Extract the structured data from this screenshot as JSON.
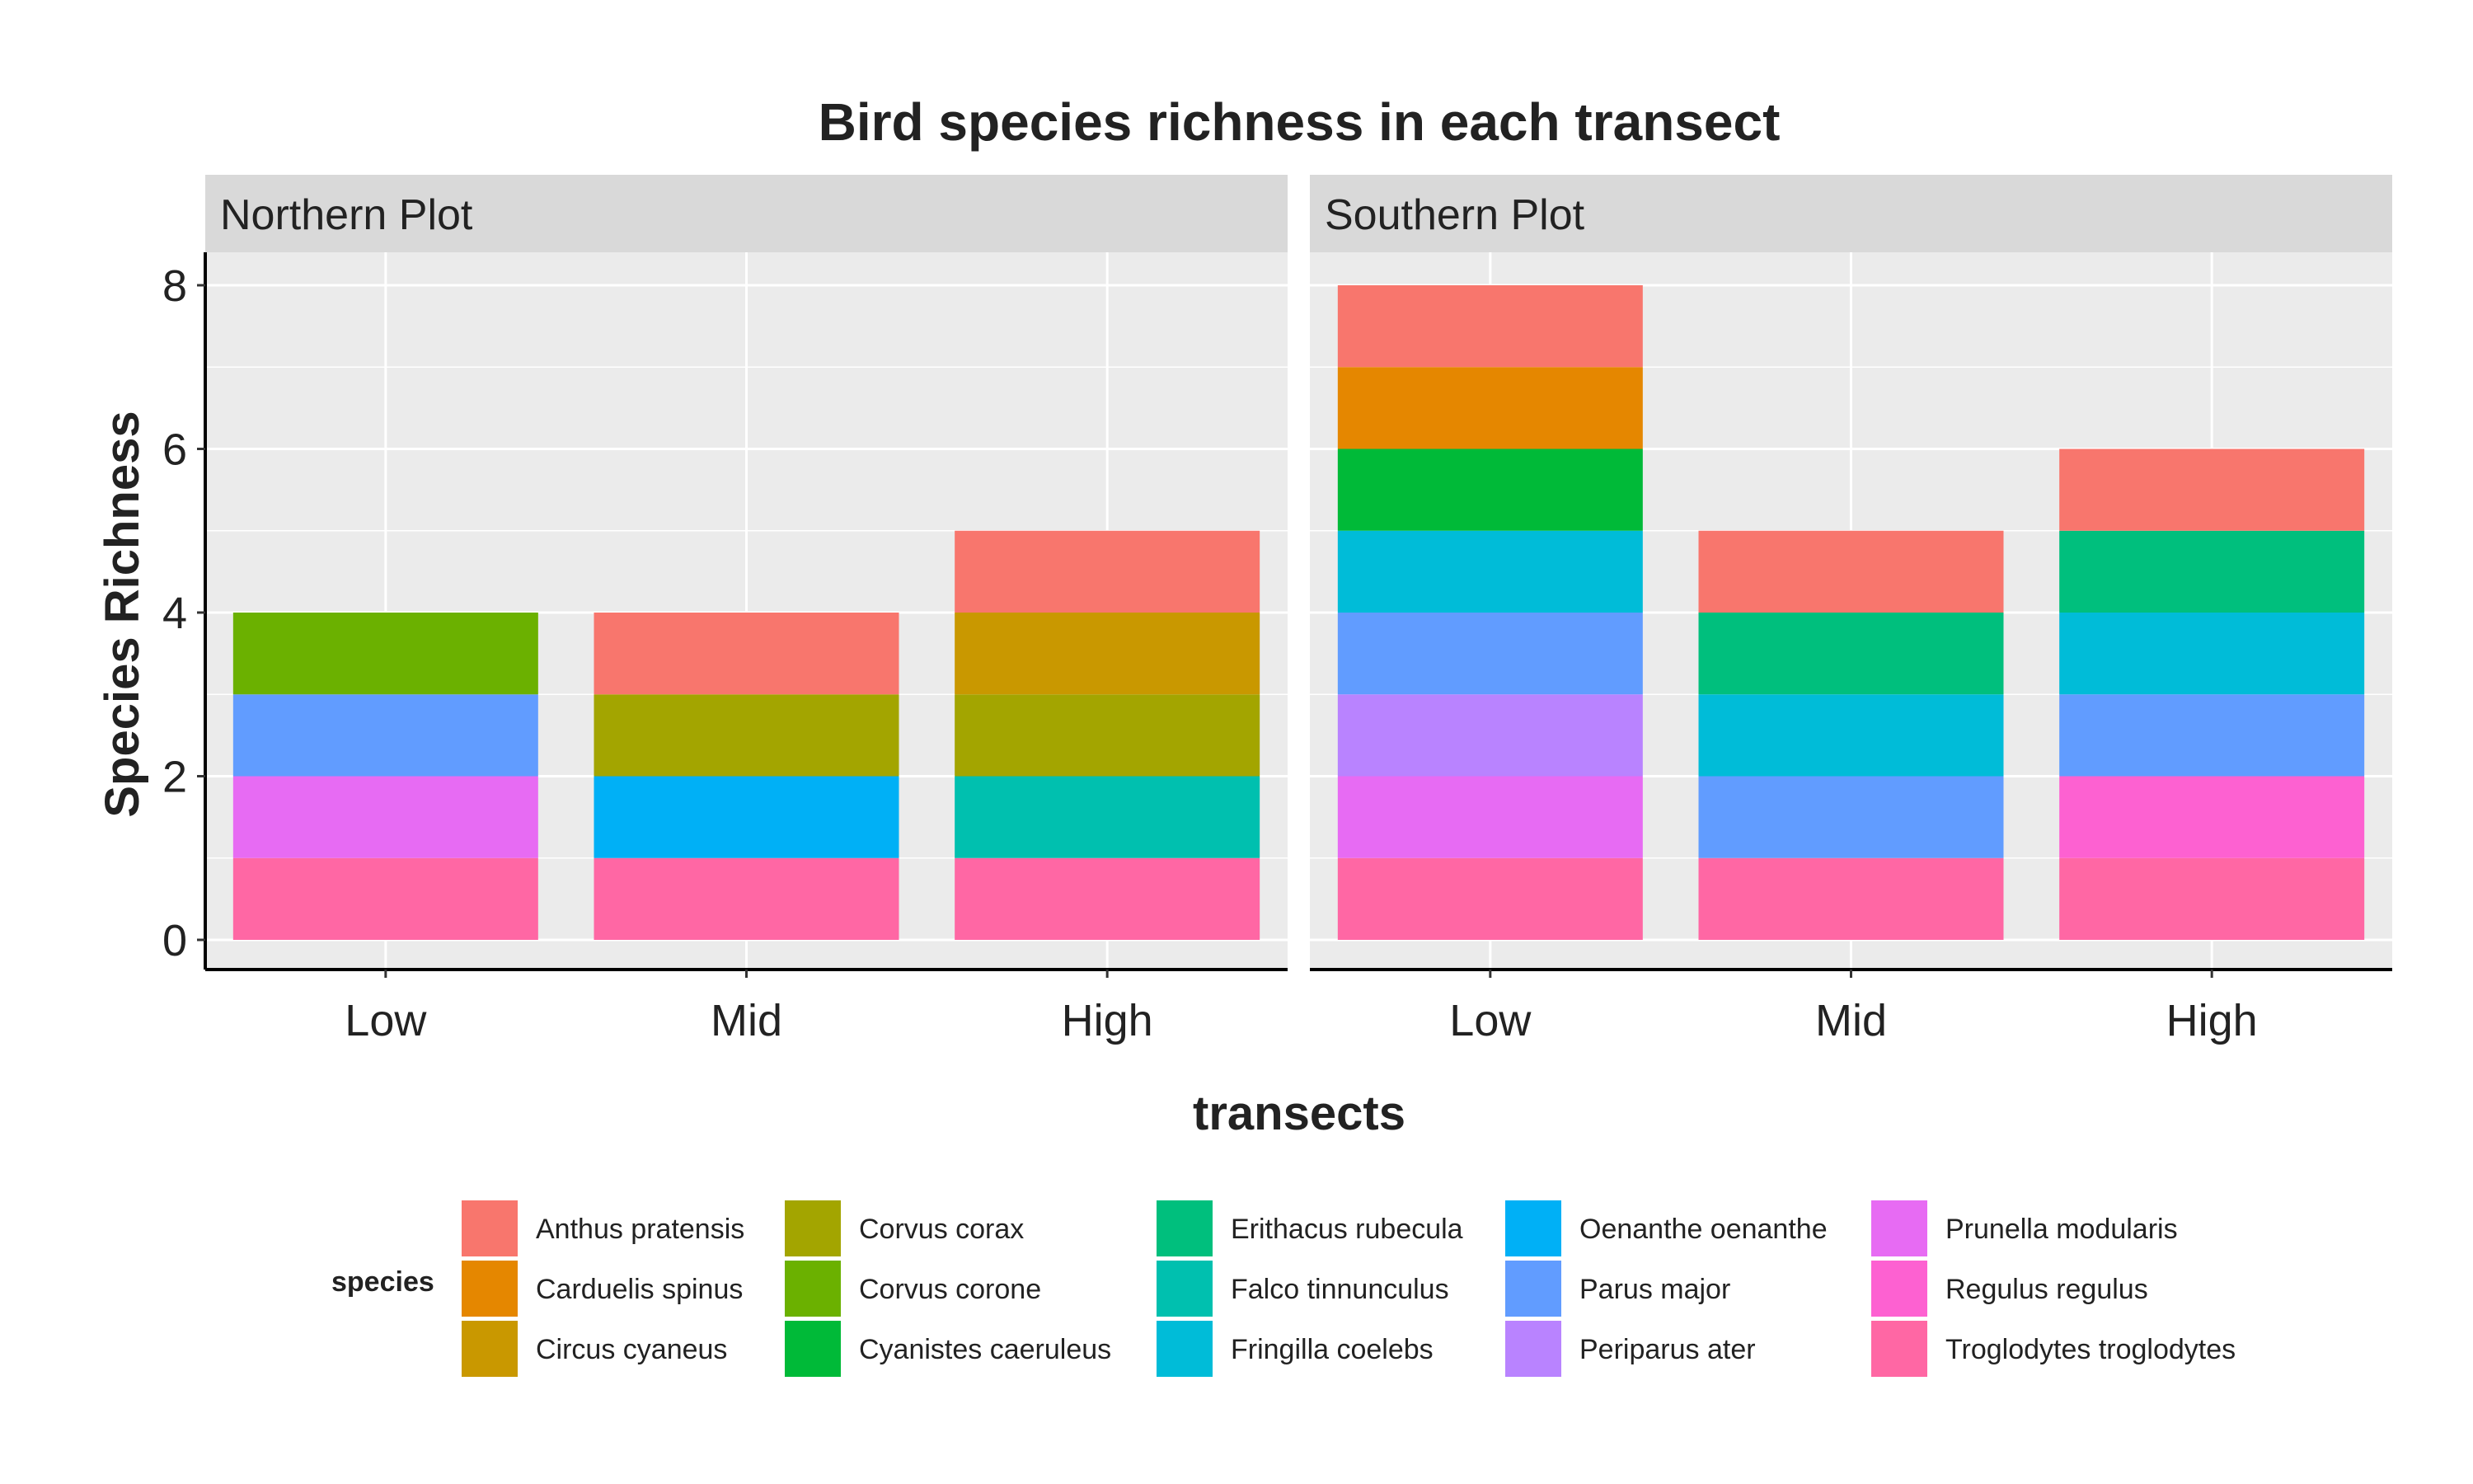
{
  "chart_data": {
    "type": "bar",
    "stacked": true,
    "title": "Bird species richness in each transect",
    "xlabel": "transects",
    "ylabel": "Species Richness",
    "ylim": [
      0,
      8
    ],
    "yticks": [
      0,
      2,
      4,
      6,
      8
    ],
    "categories": [
      "Low",
      "Mid",
      "High"
    ],
    "grid": true,
    "legend": {
      "title": "species",
      "position": "bottom",
      "entries": [
        {
          "name": "Anthus pratensis",
          "color": "#F8766D"
        },
        {
          "name": "Carduelis spinus",
          "color": "#E58700"
        },
        {
          "name": "Circus cyaneus",
          "color": "#C99800"
        },
        {
          "name": "Corvus corax",
          "color": "#A3A500"
        },
        {
          "name": "Corvus corone",
          "color": "#6BB100"
        },
        {
          "name": "Cyanistes caeruleus",
          "color": "#00BA38"
        },
        {
          "name": "Erithacus rubecula",
          "color": "#00BF7D"
        },
        {
          "name": "Falco tinnunculus",
          "color": "#00C0AF"
        },
        {
          "name": "Fringilla coelebs",
          "color": "#00BCD8"
        },
        {
          "name": "Oenanthe oenanthe",
          "color": "#00B0F6"
        },
        {
          "name": "Parus major",
          "color": "#619CFF"
        },
        {
          "name": "Periparus ater",
          "color": "#B983FF"
        },
        {
          "name": "Prunella modularis",
          "color": "#E76BF3"
        },
        {
          "name": "Regulus regulus",
          "color": "#FD61D1"
        },
        {
          "name": "Troglodytes troglodytes",
          "color": "#FF67A4"
        }
      ]
    },
    "panels": [
      {
        "label": "Northern Plot",
        "stacks": [
          {
            "category": "Low",
            "species": [
              "Troglodytes troglodytes",
              "Prunella modularis",
              "Parus major",
              "Corvus corone"
            ]
          },
          {
            "category": "Mid",
            "species": [
              "Troglodytes troglodytes",
              "Oenanthe oenanthe",
              "Corvus corax",
              "Anthus pratensis"
            ]
          },
          {
            "category": "High",
            "species": [
              "Troglodytes troglodytes",
              "Falco tinnunculus",
              "Corvus corax",
              "Circus cyaneus",
              "Anthus pratensis"
            ]
          }
        ]
      },
      {
        "label": "Southern Plot",
        "stacks": [
          {
            "category": "Low",
            "species": [
              "Troglodytes troglodytes",
              "Prunella modularis",
              "Periparus ater",
              "Parus major",
              "Fringilla coelebs",
              "Cyanistes caeruleus",
              "Carduelis spinus",
              "Anthus pratensis"
            ]
          },
          {
            "category": "Mid",
            "species": [
              "Troglodytes troglodytes",
              "Parus major",
              "Fringilla coelebs",
              "Erithacus rubecula",
              "Anthus pratensis"
            ]
          },
          {
            "category": "High",
            "species": [
              "Troglodytes troglodytes",
              "Regulus regulus",
              "Parus major",
              "Fringilla coelebs",
              "Erithacus rubecula",
              "Anthus pratensis"
            ]
          }
        ]
      }
    ]
  }
}
